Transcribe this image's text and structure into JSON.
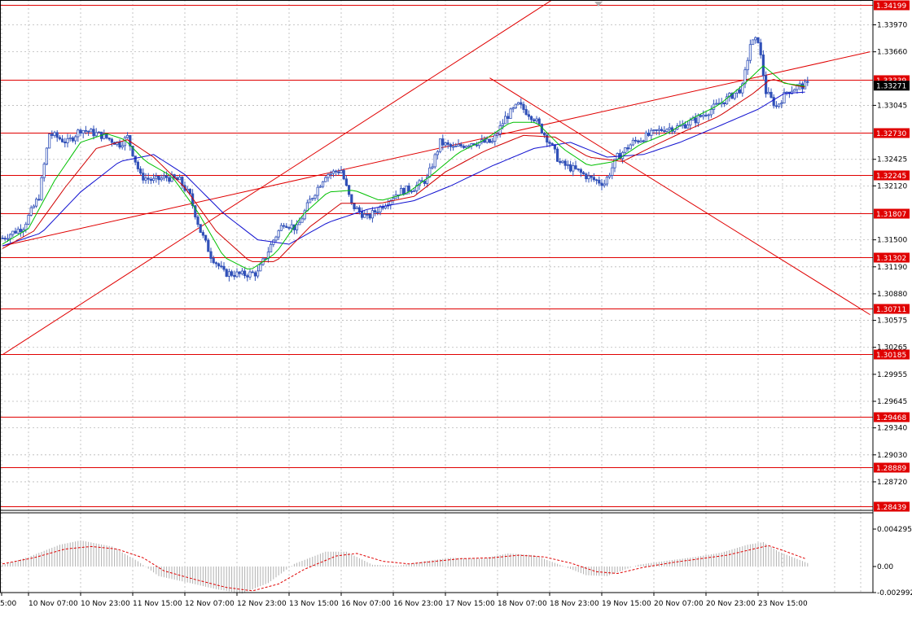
{
  "chart_data": [
    {
      "type": "candlestick",
      "symbol_description": "",
      "y_range": [
        1.28439,
        1.34199
      ],
      "price_axis_ticks": [
        "1.33970",
        "1.33660",
        "1.33045",
        "1.32425",
        "1.32120",
        "1.31500",
        "1.31190",
        "1.30880",
        "1.30575",
        "1.30265",
        "1.29955",
        "1.29645",
        "1.29340",
        "1.29030",
        "1.28720"
      ],
      "x_time_labels": [
        "5:00",
        "10 Nov 07:00",
        "10 Nov 23:00",
        "11 Nov 15:00",
        "12 Nov 07:00",
        "12 Nov 23:00",
        "13 Nov 15:00",
        "16 Nov 07:00",
        "16 Nov 23:00",
        "17 Nov 15:00",
        "18 Nov 07:00",
        "18 Nov 23:00",
        "19 Nov 15:00",
        "20 Nov 07:00",
        "20 Nov 23:00",
        "23 Nov 15:00"
      ],
      "current_price": "1.33271",
      "horizontal_levels": [
        {
          "label": "1.34199",
          "value": 1.34199
        },
        {
          "label": "1.33339",
          "value": 1.33339
        },
        {
          "label": "1.32730",
          "value": 1.3273
        },
        {
          "label": "1.32245",
          "value": 1.32245
        },
        {
          "label": "1.31807",
          "value": 1.31807
        },
        {
          "label": "1.31302",
          "value": 1.31302
        },
        {
          "label": "1.30711",
          "value": 1.30711
        },
        {
          "label": "1.30185",
          "value": 1.30185
        },
        {
          "label": "1.29468",
          "value": 1.29468
        },
        {
          "label": "1.28889",
          "value": 1.28889
        },
        {
          "label": "1.28439",
          "value": 1.28439
        }
      ],
      "trend_lines": [
        {
          "name": "channel-upper",
          "from": {
            "bar": 0,
            "price": 1.3018
          },
          "to": {
            "bar": 222,
            "price": 1.3447
          }
        },
        {
          "name": "channel-lower",
          "from": {
            "bar": 0,
            "price": 1.3143
          },
          "to": {
            "bar": 333,
            "price": 1.3366
          }
        },
        {
          "name": "descending",
          "from": {
            "bar": 187,
            "price": 1.3336
          },
          "to": {
            "bar": 333,
            "price": 1.3064
          }
        }
      ],
      "moving_averages": [
        {
          "name": "MA fast",
          "color": "#00c000"
        },
        {
          "name": "MA mid",
          "color": "#d00000"
        },
        {
          "name": "MA slow",
          "color": "#1010d0"
        }
      ],
      "price_keypoints": [
        [
          0,
          1.3152
        ],
        [
          8,
          1.3165
        ],
        [
          14,
          1.32
        ],
        [
          18,
          1.3272
        ],
        [
          25,
          1.3262
        ],
        [
          30,
          1.3277
        ],
        [
          38,
          1.327
        ],
        [
          45,
          1.326
        ],
        [
          48,
          1.3268
        ],
        [
          53,
          1.3223
        ],
        [
          58,
          1.3218
        ],
        [
          63,
          1.3222
        ],
        [
          68,
          1.3218
        ],
        [
          72,
          1.32
        ],
        [
          76,
          1.316
        ],
        [
          80,
          1.3132
        ],
        [
          85,
          1.3112
        ],
        [
          92,
          1.311
        ],
        [
          98,
          1.3112
        ],
        [
          104,
          1.315
        ],
        [
          108,
          1.317
        ],
        [
          113,
          1.3163
        ],
        [
          118,
          1.3195
        ],
        [
          124,
          1.3225
        ],
        [
          130,
          1.323
        ],
        [
          134,
          1.319
        ],
        [
          140,
          1.3175
        ],
        [
          146,
          1.319
        ],
        [
          152,
          1.3205
        ],
        [
          158,
          1.321
        ],
        [
          163,
          1.322
        ],
        [
          168,
          1.3262
        ],
        [
          173,
          1.3255
        ],
        [
          180,
          1.3262
        ],
        [
          188,
          1.3262
        ],
        [
          193,
          1.329
        ],
        [
          198,
          1.3305
        ],
        [
          204,
          1.329
        ],
        [
          210,
          1.3262
        ],
        [
          214,
          1.3238
        ],
        [
          220,
          1.323
        ],
        [
          226,
          1.322
        ],
        [
          231,
          1.3215
        ],
        [
          236,
          1.3245
        ],
        [
          242,
          1.3262
        ],
        [
          248,
          1.327
        ],
        [
          254,
          1.3278
        ],
        [
          260,
          1.328
        ],
        [
          266,
          1.3288
        ],
        [
          272,
          1.33
        ],
        [
          278,
          1.3312
        ],
        [
          284,
          1.3325
        ],
        [
          287,
          1.3375
        ],
        [
          290,
          1.338
        ],
        [
          293,
          1.332
        ],
        [
          297,
          1.3303
        ],
        [
          301,
          1.332
        ],
        [
          305,
          1.3326
        ],
        [
          309,
          1.3328
        ]
      ],
      "ma_fast_keypoints": [
        [
          0,
          1.3145
        ],
        [
          10,
          1.3163
        ],
        [
          20,
          1.3218
        ],
        [
          30,
          1.3262
        ],
        [
          40,
          1.3272
        ],
        [
          47,
          1.3265
        ],
        [
          55,
          1.324
        ],
        [
          65,
          1.3223
        ],
        [
          75,
          1.3182
        ],
        [
          85,
          1.313
        ],
        [
          95,
          1.3115
        ],
        [
          105,
          1.3135
        ],
        [
          115,
          1.3178
        ],
        [
          125,
          1.3205
        ],
        [
          135,
          1.3207
        ],
        [
          145,
          1.3195
        ],
        [
          155,
          1.3203
        ],
        [
          165,
          1.3225
        ],
        [
          175,
          1.325
        ],
        [
          185,
          1.3265
        ],
        [
          195,
          1.3285
        ],
        [
          205,
          1.3285
        ],
        [
          215,
          1.3255
        ],
        [
          225,
          1.3235
        ],
        [
          235,
          1.324
        ],
        [
          245,
          1.326
        ],
        [
          255,
          1.3272
        ],
        [
          265,
          1.329
        ],
        [
          275,
          1.3305
        ],
        [
          285,
          1.333
        ],
        [
          292,
          1.335
        ],
        [
          300,
          1.333
        ],
        [
          309,
          1.3326
        ]
      ],
      "ma_mid_keypoints": [
        [
          0,
          1.314
        ],
        [
          12,
          1.316
        ],
        [
          24,
          1.321
        ],
        [
          36,
          1.3255
        ],
        [
          48,
          1.3265
        ],
        [
          58,
          1.3245
        ],
        [
          70,
          1.321
        ],
        [
          82,
          1.316
        ],
        [
          95,
          1.3125
        ],
        [
          105,
          1.3125
        ],
        [
          118,
          1.3165
        ],
        [
          130,
          1.3192
        ],
        [
          145,
          1.3192
        ],
        [
          158,
          1.32
        ],
        [
          170,
          1.3228
        ],
        [
          185,
          1.3252
        ],
        [
          200,
          1.327
        ],
        [
          212,
          1.3268
        ],
        [
          225,
          1.3245
        ],
        [
          238,
          1.324
        ],
        [
          250,
          1.3258
        ],
        [
          262,
          1.3275
        ],
        [
          275,
          1.3292
        ],
        [
          288,
          1.3318
        ],
        [
          295,
          1.3335
        ],
        [
          303,
          1.3328
        ],
        [
          309,
          1.3325
        ]
      ],
      "ma_slow_keypoints": [
        [
          0,
          1.3143
        ],
        [
          15,
          1.3158
        ],
        [
          30,
          1.3205
        ],
        [
          45,
          1.324
        ],
        [
          58,
          1.3248
        ],
        [
          70,
          1.3225
        ],
        [
          85,
          1.318
        ],
        [
          98,
          1.315
        ],
        [
          110,
          1.3145
        ],
        [
          125,
          1.317
        ],
        [
          140,
          1.3185
        ],
        [
          158,
          1.3195
        ],
        [
          172,
          1.3212
        ],
        [
          188,
          1.3235
        ],
        [
          204,
          1.3255
        ],
        [
          218,
          1.3262
        ],
        [
          232,
          1.3245
        ],
        [
          246,
          1.3248
        ],
        [
          260,
          1.3262
        ],
        [
          276,
          1.3282
        ],
        [
          290,
          1.33
        ],
        [
          300,
          1.3318
        ],
        [
          309,
          1.332
        ]
      ],
      "oscillator": {
        "type": "MACD",
        "range": [
          -0.002992,
          0.004295
        ],
        "tick_labels": [
          "0.004295",
          "0.00",
          "-0.002992"
        ],
        "histogram_keypoints": [
          [
            0,
            0.0002
          ],
          [
            10,
            0.0011
          ],
          [
            22,
            0.0025
          ],
          [
            30,
            0.003
          ],
          [
            42,
            0.0023
          ],
          [
            52,
            0.0006
          ],
          [
            60,
            -0.0011
          ],
          [
            72,
            -0.0019
          ],
          [
            82,
            -0.0026
          ],
          [
            92,
            -0.0031
          ],
          [
            102,
            -0.0019
          ],
          [
            112,
            0.0003
          ],
          [
            124,
            0.0017
          ],
          [
            132,
            0.0017
          ],
          [
            142,
            0.0002
          ],
          [
            152,
            0.0001
          ],
          [
            162,
            0.0006
          ],
          [
            172,
            0.001
          ],
          [
            184,
            0.0009
          ],
          [
            194,
            0.0015
          ],
          [
            204,
            0.0013
          ],
          [
            214,
            0.0002
          ],
          [
            224,
            -0.001
          ],
          [
            232,
            -0.0011
          ],
          [
            244,
            0.0002
          ],
          [
            256,
            0.0007
          ],
          [
            266,
            0.0011
          ],
          [
            276,
            0.0016
          ],
          [
            286,
            0.0025
          ],
          [
            292,
            0.0028
          ],
          [
            298,
            0.0017
          ],
          [
            309,
            0.0004
          ]
        ],
        "signal_keypoints": [
          [
            0,
            0.0003
          ],
          [
            12,
            0.001
          ],
          [
            24,
            0.002
          ],
          [
            34,
            0.0023
          ],
          [
            44,
            0.002
          ],
          [
            54,
            0.001
          ],
          [
            62,
            -0.0005
          ],
          [
            74,
            -0.0015
          ],
          [
            86,
            -0.0024
          ],
          [
            96,
            -0.0028
          ],
          [
            106,
            -0.002
          ],
          [
            116,
            -0.0003
          ],
          [
            128,
            0.0012
          ],
          [
            136,
            0.0015
          ],
          [
            146,
            0.0006
          ],
          [
            156,
            0.0003
          ],
          [
            166,
            0.0006
          ],
          [
            176,
            0.0009
          ],
          [
            188,
            0.001
          ],
          [
            198,
            0.0013
          ],
          [
            208,
            0.0011
          ],
          [
            218,
            0.0004
          ],
          [
            228,
            -0.0006
          ],
          [
            236,
            -0.0008
          ],
          [
            246,
            -0.0001
          ],
          [
            258,
            0.0005
          ],
          [
            268,
            0.0009
          ],
          [
            278,
            0.0013
          ],
          [
            288,
            0.002
          ],
          [
            294,
            0.0024
          ],
          [
            300,
            0.0018
          ],
          [
            309,
            0.0008
          ]
        ]
      }
    }
  ]
}
